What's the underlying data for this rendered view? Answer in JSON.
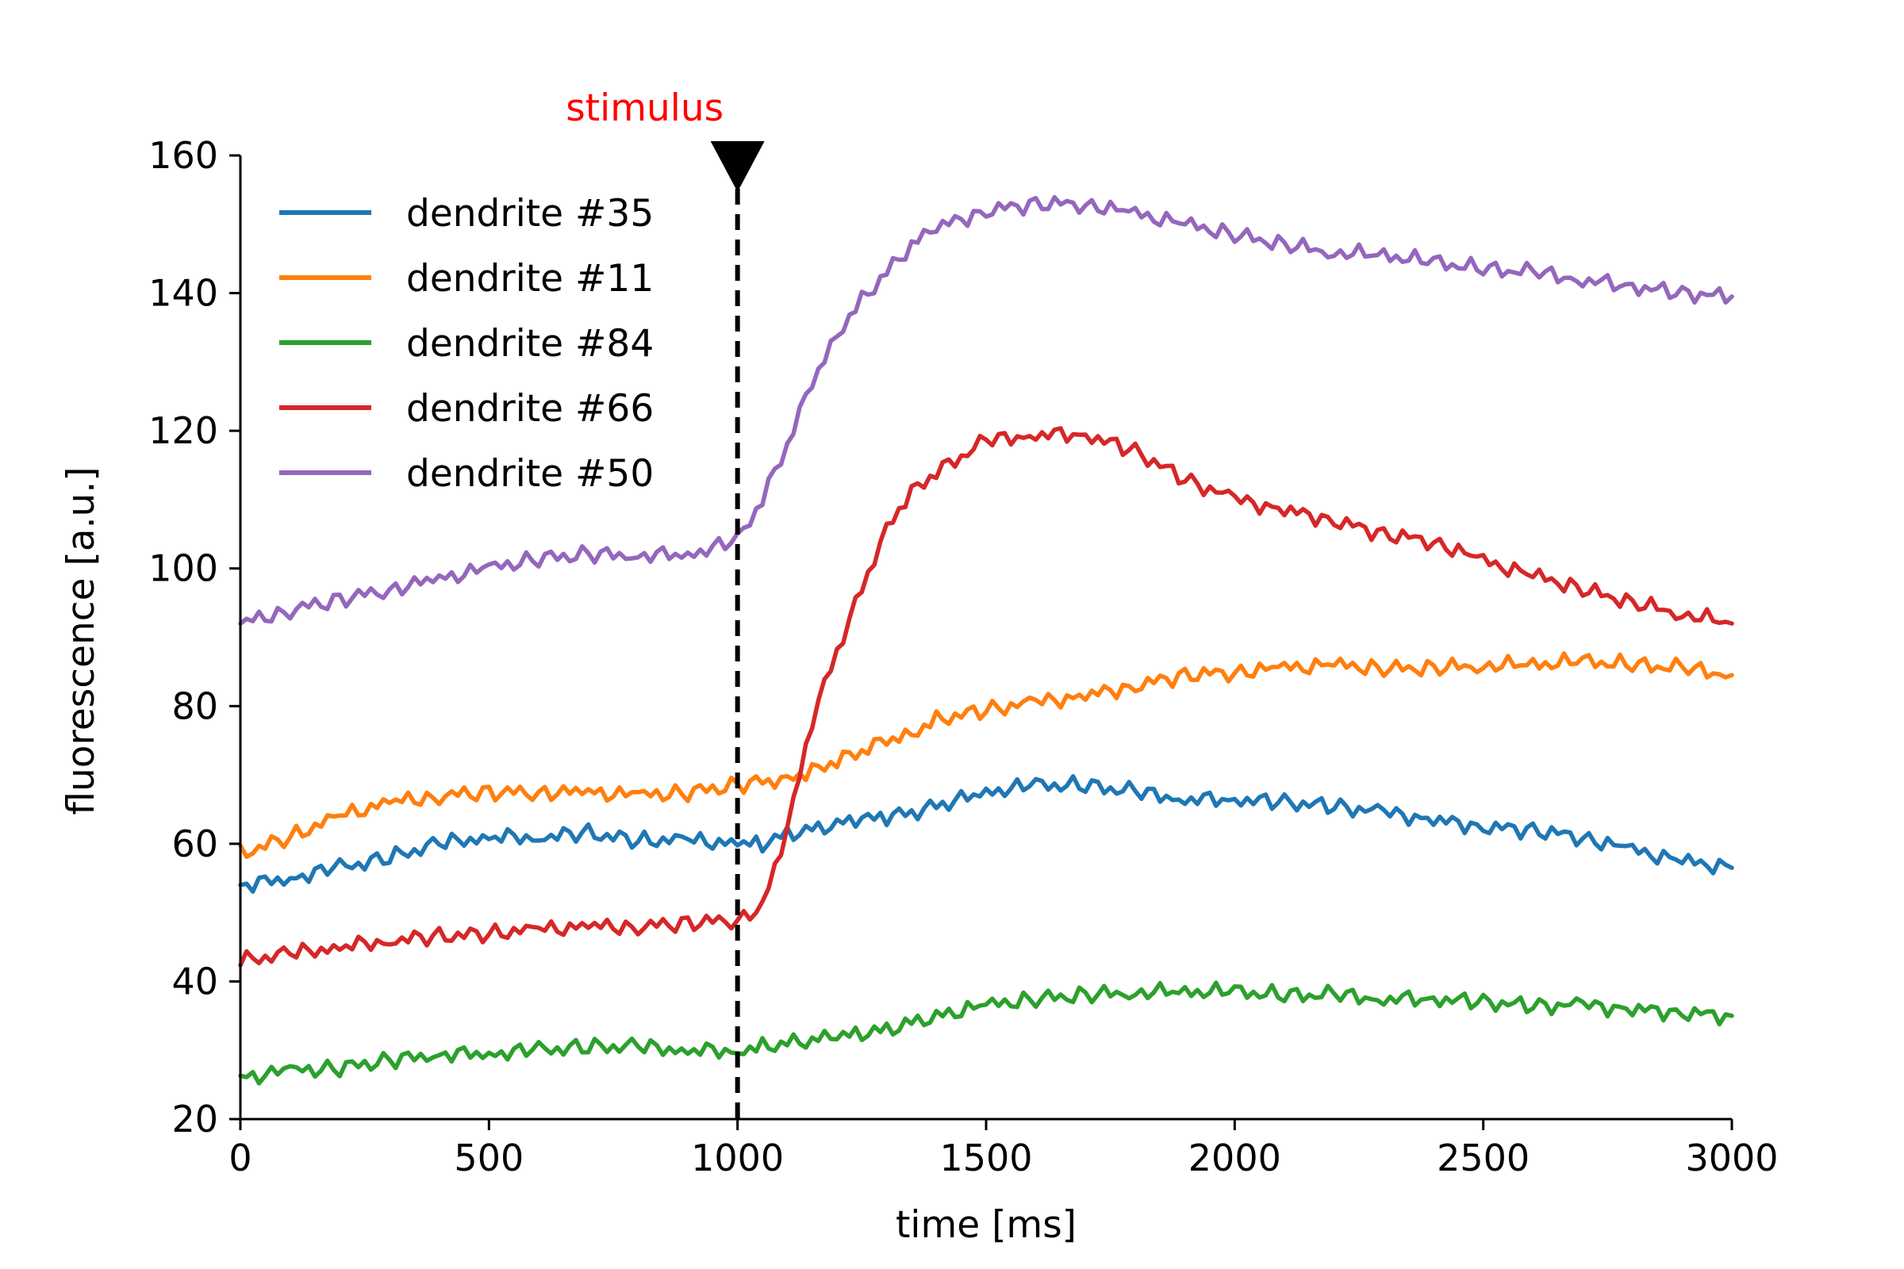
{
  "chart_data": {
    "type": "line",
    "title": "",
    "xlabel": "time [ms]",
    "ylabel": "fluorescence [a.u.]",
    "xlim": [
      0,
      3000
    ],
    "ylim": [
      20,
      160
    ],
    "xticks": [
      0,
      500,
      1000,
      1500,
      2000,
      2500,
      3000
    ],
    "yticks": [
      20,
      40,
      60,
      80,
      100,
      120,
      140,
      160
    ],
    "grid": false,
    "legend_position": "upper-left",
    "x": [
      0,
      100,
      200,
      300,
      400,
      500,
      600,
      700,
      800,
      900,
      1000,
      1050,
      1100,
      1150,
      1200,
      1250,
      1300,
      1350,
      1400,
      1500,
      1600,
      1700,
      1800,
      1900,
      2000,
      2100,
      2200,
      2300,
      2400,
      2500,
      2600,
      2700,
      2800,
      2900,
      3000
    ],
    "series": [
      {
        "name": "dendrite #35",
        "color": "#1f77b4",
        "values": [
          54,
          55,
          56.5,
          58,
          60,
          61,
          61,
          61.5,
          60.5,
          60.5,
          60,
          60,
          61.5,
          62,
          63,
          63.5,
          64,
          64.5,
          65.5,
          67.5,
          68.5,
          68.5,
          67.5,
          66.5,
          66.5,
          66,
          65.5,
          64.5,
          63.5,
          62.5,
          62,
          61,
          59,
          57.5,
          56.5
        ]
      },
      {
        "name": "dendrite #11",
        "color": "#ff7f0e",
        "values": [
          58.5,
          61,
          64,
          66,
          67,
          67.5,
          67.5,
          67.5,
          67,
          67.5,
          68.5,
          69,
          69.5,
          70.5,
          72,
          73.5,
          75,
          76,
          78,
          79.5,
          80.5,
          81.5,
          83,
          84.5,
          85,
          85.5,
          86,
          85.5,
          85.5,
          86,
          86,
          86.5,
          86,
          85.5,
          84.5
        ]
      },
      {
        "name": "dendrite #84",
        "color": "#2ca02c",
        "values": [
          26,
          27,
          27.5,
          28.5,
          29.5,
          29.5,
          30,
          30.5,
          30.5,
          30,
          30,
          30.5,
          31,
          31.5,
          32,
          32.5,
          33,
          34,
          35,
          36.5,
          37.5,
          38,
          38.5,
          38.5,
          38.5,
          38,
          38,
          37.5,
          37.5,
          37,
          36.5,
          36.5,
          36,
          35.5,
          35
        ]
      },
      {
        "name": "dendrite #66",
        "color": "#d62728",
        "values": [
          43,
          44,
          45,
          46,
          46.5,
          47,
          47.5,
          48,
          48,
          48.5,
          49,
          51,
          62,
          78,
          88,
          97,
          106,
          111,
          114,
          118.5,
          119.5,
          119.5,
          117,
          113,
          110,
          108.5,
          107,
          105,
          104,
          101,
          99,
          97,
          95,
          93.5,
          92
        ]
      },
      {
        "name": "dendrite #50",
        "color": "#9467bd",
        "values": [
          92,
          94,
          95.5,
          97,
          98.5,
          100,
          101.5,
          102,
          102,
          102,
          104,
          110,
          118,
          127,
          134,
          139,
          143,
          147,
          149.5,
          152,
          153,
          153,
          151.5,
          150,
          148.5,
          147,
          146,
          145.5,
          144.5,
          143.5,
          143,
          142,
          141,
          140,
          139.5
        ]
      }
    ],
    "annotations": [
      {
        "text": "stimulus",
        "x": 1000,
        "color": "#ff0000",
        "marker": "black downward triangle",
        "line": "black dashed vertical line"
      }
    ]
  }
}
